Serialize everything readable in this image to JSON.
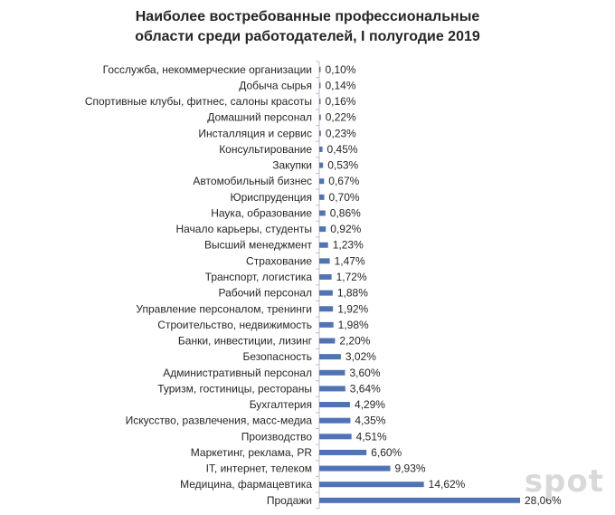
{
  "chart_data": {
    "type": "bar",
    "orientation": "horizontal",
    "title_line1": "Наиболее востребованные профессиональные",
    "title_line2": "области среди работодателей, I полугодие 2019",
    "categories": [
      "Госслужба, некоммерческие организации",
      "Добыча сырья",
      "Спортивные клубы, фитнес, салоны красоты",
      "Домашний персонал",
      "Инсталляция и сервис",
      "Консультирование",
      "Закупки",
      "Автомобильный бизнес",
      "Юриспруденция",
      "Наука, образование",
      "Начало карьеры, студенты",
      "Высший менеджмент",
      "Страхование",
      "Транспорт, логистика",
      "Рабочий персонал",
      "Управление персоналом, тренинги",
      "Строительство, недвижимость",
      "Банки, инвестиции, лизинг",
      "Безопасность",
      "Административный персонал",
      "Туризм, гостиницы, рестораны",
      "Бухгалтерия",
      "Искусство, развлечения, масс-медиа",
      "Производство",
      "Маркетинг, реклама, PR",
      "IT, интернет, телеком",
      "Медицина, фармацевтика",
      "Продажи"
    ],
    "values": [
      0.1,
      0.14,
      0.16,
      0.22,
      0.23,
      0.45,
      0.53,
      0.67,
      0.7,
      0.86,
      0.92,
      1.23,
      1.47,
      1.72,
      1.88,
      1.92,
      1.98,
      2.2,
      3.02,
      3.6,
      3.64,
      4.29,
      4.35,
      4.51,
      6.6,
      9.93,
      14.62,
      28.06
    ],
    "value_labels": [
      "0,10%",
      "0,14%",
      "0,16%",
      "0,22%",
      "0,23%",
      "0,45%",
      "0,53%",
      "0,67%",
      "0,70%",
      "0,86%",
      "0,92%",
      "1,23%",
      "1,47%",
      "1,72%",
      "1,88%",
      "1,92%",
      "1,98%",
      "2,20%",
      "3,02%",
      "3,60%",
      "3,64%",
      "4,29%",
      "4,35%",
      "4,51%",
      "6,60%",
      "9,93%",
      "14,62%",
      "28,06%"
    ],
    "xlim": [
      0,
      28.06
    ],
    "grid": false,
    "legend": "none",
    "bar_color": "#4f74b6",
    "axis_color": "#bfbfbf",
    "label_color": "#262626"
  },
  "watermark": "spot"
}
